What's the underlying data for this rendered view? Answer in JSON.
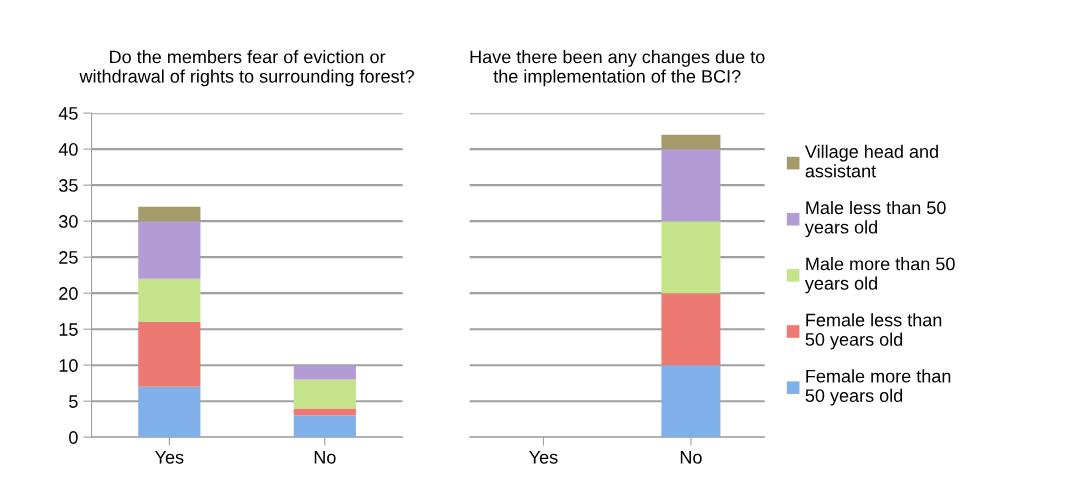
{
  "chart_data": [
    {
      "type": "bar",
      "title": "Do the members fear of eviction or\nwithdrawal of rights to surrounding forest?",
      "categories": [
        "Yes",
        "No"
      ],
      "stacked": true,
      "ylim": [
        0,
        45
      ],
      "yticks": [
        0,
        5,
        10,
        15,
        20,
        25,
        30,
        35,
        40,
        45
      ],
      "grid": "y",
      "legend": false,
      "series": [
        {
          "color": "#7fb0ea",
          "values": [
            7,
            3
          ]
        },
        {
          "color": "#ec7a72",
          "values": [
            9,
            1
          ]
        },
        {
          "color": "#c5e38a",
          "values": [
            6,
            4
          ]
        },
        {
          "color": "#b39bd6",
          "values": [
            8,
            2
          ]
        },
        {
          "color": "#a59a6a",
          "values": [
            2,
            0
          ]
        }
      ]
    },
    {
      "type": "bar",
      "title": "Have there been any changes due to\nthe implementation of the BCI?",
      "categories": [
        "Yes",
        "No"
      ],
      "stacked": true,
      "ylim": [
        0,
        45
      ],
      "yticks": [
        0,
        5,
        10,
        15,
        20,
        25,
        30,
        35,
        40,
        45
      ],
      "tick_labels": "x",
      "grid": "y",
      "legend": "right",
      "series": [
        {
          "name": "Female more than 50 years old",
          "color": "#7fb0ea",
          "values": [
            0,
            10
          ]
        },
        {
          "name": "Female less than 50 years old",
          "color": "#ec7a72",
          "values": [
            0,
            10
          ]
        },
        {
          "name": "Male more than 50 years old",
          "color": "#c5e38a",
          "values": [
            0,
            10
          ]
        },
        {
          "name": "Male less than 50 years old",
          "color": "#b39bd6",
          "values": [
            0,
            10
          ]
        },
        {
          "name": "Village head and assistant",
          "color": "#a59a6a",
          "values": [
            0,
            2
          ]
        }
      ]
    }
  ]
}
